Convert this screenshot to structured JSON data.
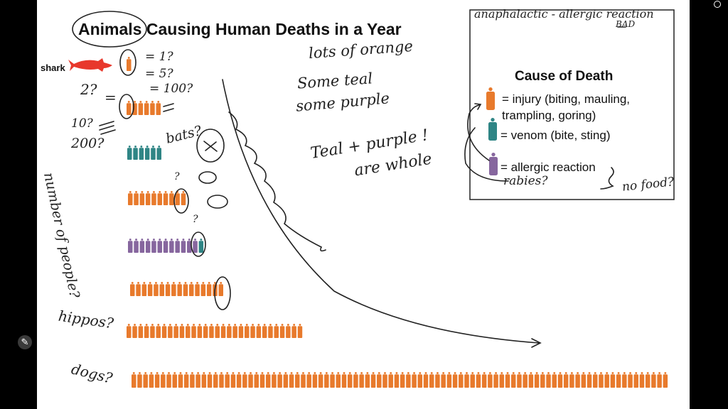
{
  "title": "Animals Causing Human Deaths in a Year",
  "shark_label": "shark",
  "legend": {
    "title": "Cause of Death",
    "items": [
      {
        "text_lines": [
          "= injury (biting, mauling,",
          "trampling, goring)"
        ],
        "color": "#E87A2C"
      },
      {
        "text_lines": [
          "= venom (bite, sting)"
        ],
        "color": "#2F8585"
      },
      {
        "text_lines": [
          "= allergic reaction"
        ],
        "color": "#86669E"
      }
    ]
  },
  "colors": {
    "injury": "#E87A2C",
    "venom": "#2F8585",
    "allergic": "#86669E",
    "shark": "#E8382C"
  },
  "icon_rows": [
    {
      "segments": [
        {
          "type": "injury",
          "count": 1
        }
      ]
    },
    {
      "segments": [
        {
          "type": "injury",
          "count": 6
        }
      ]
    },
    {
      "segments": [
        {
          "type": "venom",
          "count": 6
        }
      ]
    },
    {
      "segments": [
        {
          "type": "injury",
          "count": 10
        }
      ]
    },
    {
      "segments": [
        {
          "type": "allergic",
          "count": 12
        },
        {
          "type": "venom",
          "count": 1
        }
      ]
    },
    {
      "segments": [
        {
          "type": "injury",
          "count": 16
        }
      ]
    },
    {
      "segments": [
        {
          "type": "injury",
          "count": 30
        }
      ]
    },
    {
      "segments": [
        {
          "type": "injury",
          "count": 92
        }
      ]
    }
  ],
  "annotations": {
    "top_legend": "anaphalactic - allergic reaction",
    "bad": "BAD",
    "eq1": "= 1?",
    "eq5": "= 5?",
    "eq100": "= 100?",
    "two": "2?",
    "eq": "=",
    "ten": "10?",
    "two_hundred": "200?",
    "bats": "bats?",
    "q1": "?",
    "q2": "?",
    "lots_orange": "lots of orange",
    "some_teal": "Some teal",
    "some_purple": "some purple",
    "teal_purple": "Teal + purple !",
    "are_whole": "are whole",
    "number_of_people": "number of people?",
    "hippos": "hippos?",
    "dogs": "dogs?",
    "rabies": "rabies?",
    "no_food": "no food?"
  }
}
